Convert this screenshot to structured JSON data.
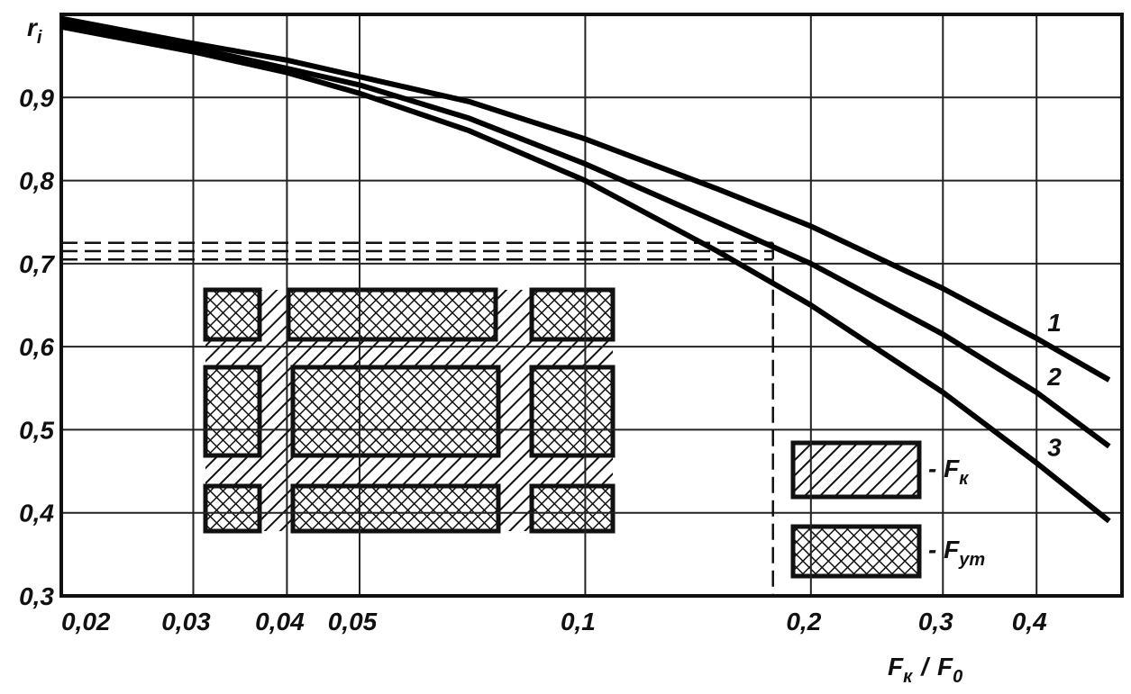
{
  "chart_data": {
    "type": "line",
    "y_label": {
      "text": "r",
      "sub": "i"
    },
    "x_label": {
      "num": "F",
      "num_sub": "к",
      "slash": "/",
      "den": "F",
      "den_sub": "0"
    },
    "x_scale": "log",
    "grid": true,
    "x": [
      0.02,
      0.03,
      0.04,
      0.05,
      0.07,
      0.1,
      0.15,
      0.2,
      0.3,
      0.4,
      0.5
    ],
    "series": [
      {
        "name": "1",
        "color": "#000000",
        "values": [
          0.995,
          0.965,
          0.945,
          0.925,
          0.895,
          0.85,
          0.79,
          0.745,
          0.67,
          0.61,
          0.56
        ]
      },
      {
        "name": "2",
        "color": "#000000",
        "values": [
          0.99,
          0.96,
          0.935,
          0.915,
          0.875,
          0.82,
          0.75,
          0.7,
          0.615,
          0.545,
          0.48
        ]
      },
      {
        "name": "3",
        "color": "#000000",
        "values": [
          0.985,
          0.955,
          0.93,
          0.905,
          0.86,
          0.8,
          0.715,
          0.65,
          0.545,
          0.46,
          0.39
        ]
      }
    ],
    "xlim": [
      0.02,
      0.52
    ],
    "ylim": [
      0.3,
      1.0
    ],
    "xticks": [
      {
        "value": 0.02,
        "label": "0,02"
      },
      {
        "value": 0.03,
        "label": "0,03"
      },
      {
        "value": 0.04,
        "label": "0,04"
      },
      {
        "value": 0.05,
        "label": "0,05"
      },
      {
        "value": 0.1,
        "label": "0,1"
      },
      {
        "value": 0.2,
        "label": "0,2"
      },
      {
        "value": 0.3,
        "label": "0,3"
      },
      {
        "value": 0.4,
        "label": "0,4"
      }
    ],
    "yticks": [
      {
        "value": 0.3,
        "label": "0,3"
      },
      {
        "value": 0.4,
        "label": "0,4"
      },
      {
        "value": 0.5,
        "label": "0,5"
      },
      {
        "value": 0.6,
        "label": "0,6"
      },
      {
        "value": 0.7,
        "label": "0,7"
      },
      {
        "value": 0.8,
        "label": "0,8"
      },
      {
        "value": 0.9,
        "label": "0,9"
      }
    ],
    "guides": {
      "y": [
        0.725,
        0.715,
        0.705
      ],
      "x": 0.178
    },
    "legend": [
      {
        "dash": "-",
        "label": "F",
        "sub": "к"
      },
      {
        "dash": "-",
        "label": "F",
        "sub": "ут"
      }
    ]
  }
}
